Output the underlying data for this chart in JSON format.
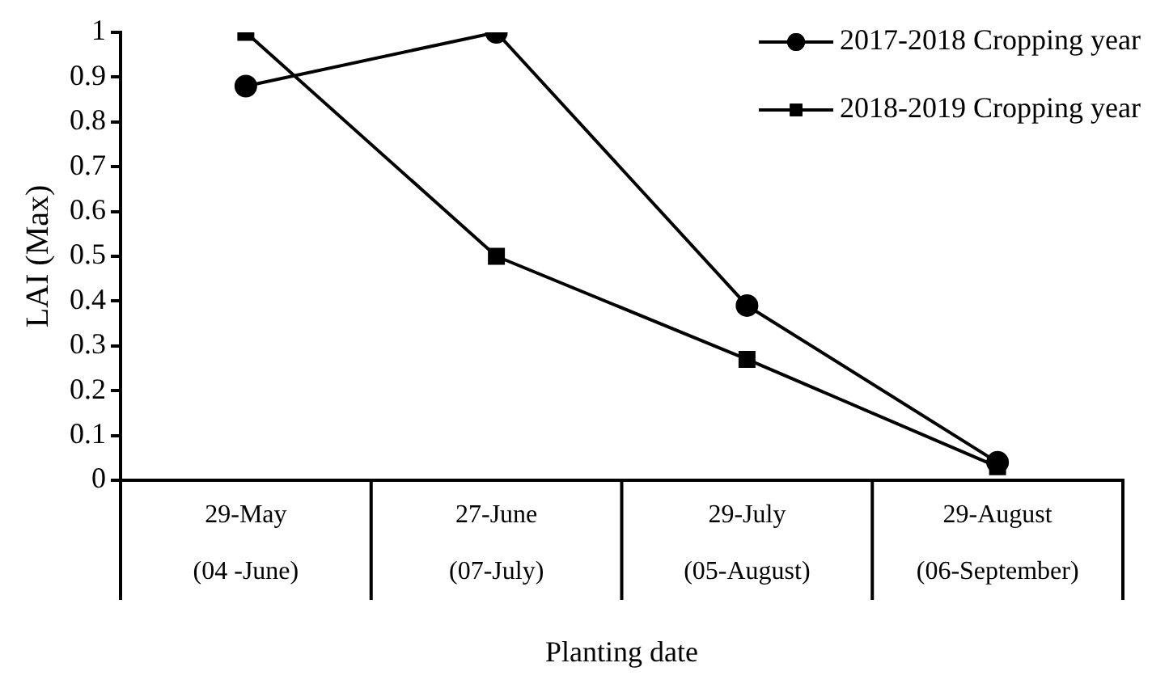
{
  "chart_data": {
    "type": "line",
    "xlabel": "Planting date",
    "ylabel": "LAI (Max)",
    "categories": [
      "29-May\n(04 -June)",
      "27-June\n(07-July)",
      "29-July\n(05-August)",
      "29-August\n(06-September)"
    ],
    "series": [
      {
        "name": "2017-2018 Cropping year",
        "color": "#000000",
        "marker": "circle",
        "values": [
          0.88,
          1,
          0.39,
          0.04
        ]
      },
      {
        "name": "2018-2019 Cropping year",
        "color": "#000000",
        "marker": "square",
        "values": [
          1,
          0.5,
          0.27,
          0.03
        ]
      }
    ],
    "ylim": [
      0,
      1
    ],
    "yticks": [
      0,
      0.1,
      0.2,
      0.3,
      0.4,
      0.5,
      0.6,
      0.7,
      0.8,
      0.9,
      1
    ],
    "grid": false,
    "legend": "top right",
    "line_style": "solid"
  }
}
